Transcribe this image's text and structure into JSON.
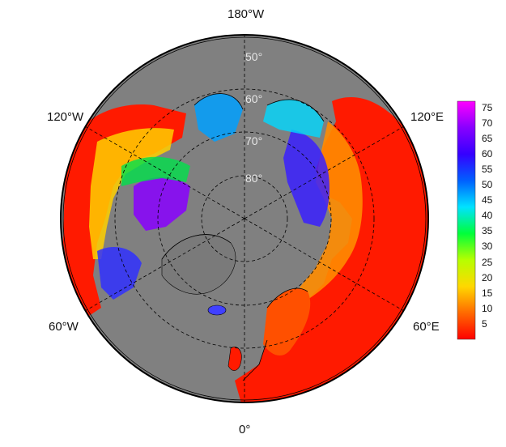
{
  "longitude_labels": {
    "top": "180°W",
    "upper_left": "120°W",
    "upper_right": "120°E",
    "lower_left": "60°W",
    "lower_right": "60°E",
    "bottom": "0°"
  },
  "latitude_labels": [
    "50°",
    "60°",
    "70°",
    "80°"
  ],
  "colorbar": {
    "ticks": [
      "75",
      "70",
      "65",
      "60",
      "55",
      "50",
      "45",
      "40",
      "35",
      "30",
      "25",
      "20",
      "15",
      "10",
      "5"
    ],
    "min": 0,
    "max": 77,
    "stops": [
      "#ff0000",
      "#ff6a00",
      "#ffd800",
      "#b6ff00",
      "#00ff3a",
      "#00e2ff",
      "#0060ff",
      "#3500ff",
      "#8800ff",
      "#ff00ff"
    ]
  },
  "colors": {
    "land_masked": "#808080",
    "low_value": "#ff1a00",
    "background": "#ffffff"
  }
}
